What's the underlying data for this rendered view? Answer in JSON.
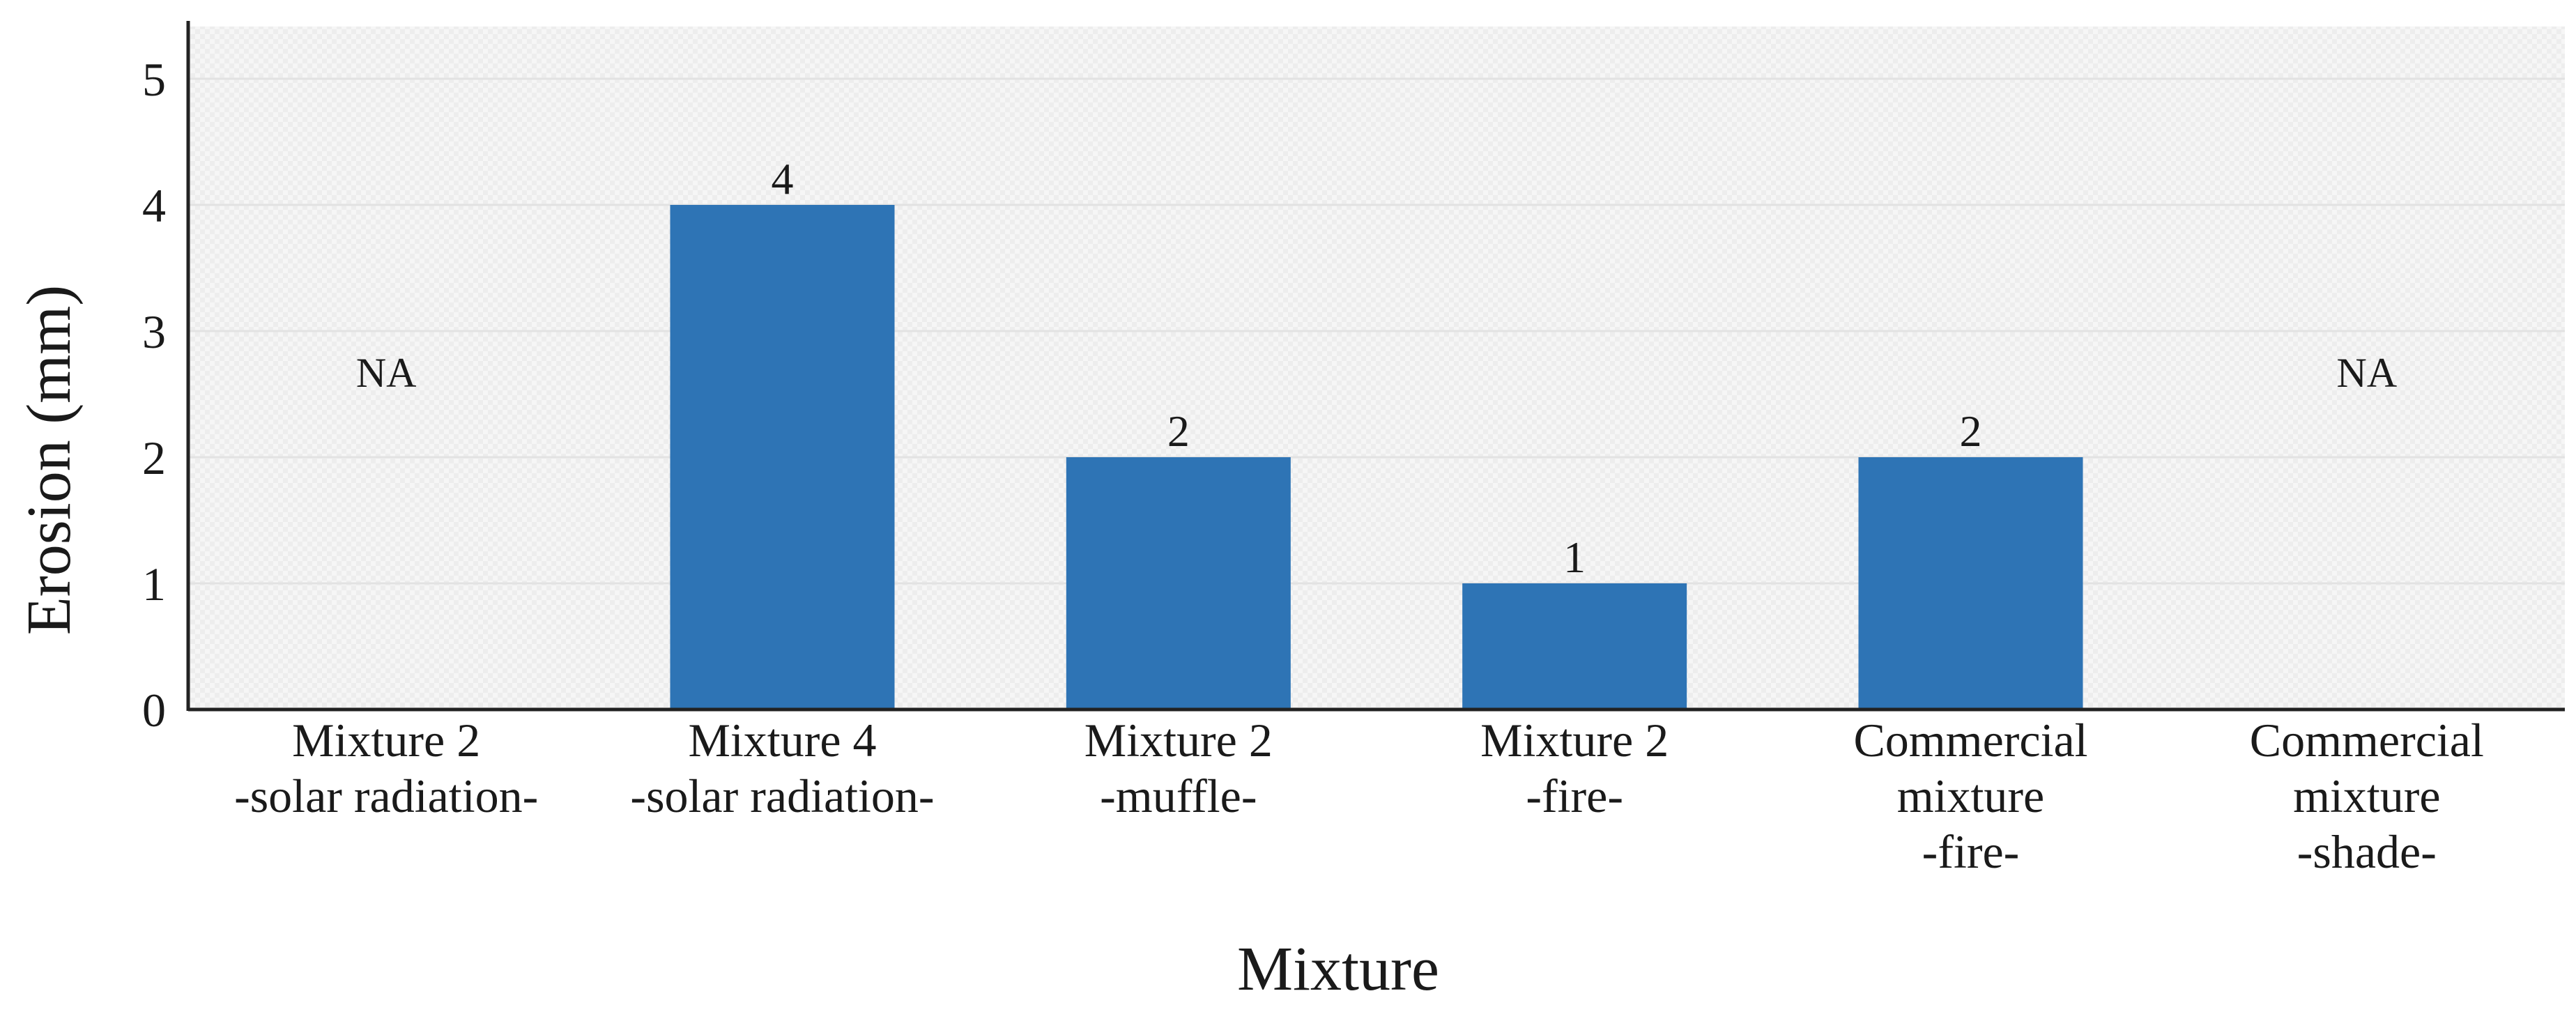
{
  "chart_data": {
    "type": "bar",
    "title": "",
    "xlabel": "Mixture",
    "ylabel": "Erosion (mm)",
    "ylim": [
      0,
      5.4
    ],
    "yticks": [
      "0",
      "1",
      "2",
      "3",
      "4",
      "5"
    ],
    "grid": true,
    "legend": "none",
    "bar_color": "#2e74b5",
    "categories": [
      [
        "Mixture 2",
        "-solar radiation-"
      ],
      [
        "Mixture 4",
        "-solar radiation-"
      ],
      [
        "Mixture 2",
        "-muffle-"
      ],
      [
        "Mixture 2",
        "-fire-"
      ],
      [
        "Commercial",
        "mixture",
        "-fire-"
      ],
      [
        "Commercial",
        "mixture",
        "-shade-"
      ]
    ],
    "values": [
      null,
      4,
      2,
      1,
      2,
      null
    ],
    "data_labels": [
      "NA",
      "4",
      "2",
      "1",
      "2",
      "NA"
    ]
  }
}
